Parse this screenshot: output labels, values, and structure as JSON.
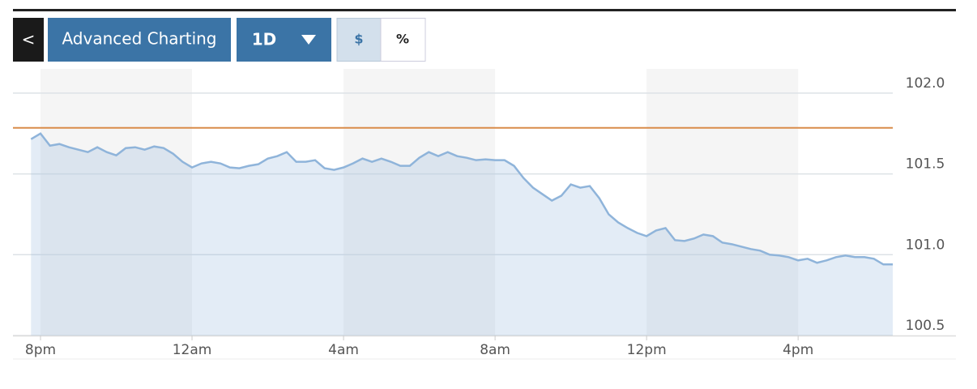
{
  "toolbar": {
    "back": "<",
    "title": "Advanced Charting",
    "range": "1D",
    "currency": "$",
    "percent": "%"
  },
  "chart_data": {
    "type": "area",
    "categories": [
      null,
      "8pm",
      null,
      null,
      null,
      null,
      null,
      null,
      null,
      null,
      null,
      null,
      null,
      null,
      null,
      null,
      null,
      "12am",
      null,
      null,
      null,
      null,
      null,
      null,
      null,
      null,
      null,
      null,
      null,
      null,
      null,
      null,
      null,
      "4am",
      null,
      null,
      null,
      null,
      null,
      null,
      null,
      null,
      null,
      null,
      null,
      null,
      null,
      null,
      null,
      "8am",
      null,
      null,
      null,
      null,
      null,
      null,
      null,
      null,
      null,
      null,
      null,
      null,
      null,
      null,
      null,
      "12pm",
      null,
      null,
      null,
      null,
      null,
      null,
      null,
      null,
      null,
      null,
      null,
      null,
      null,
      null,
      null,
      "4pm",
      null,
      null,
      null,
      null,
      null,
      null,
      null,
      null,
      null,
      null
    ],
    "series": [
      {
        "color": "#8fb4da",
        "values": [
          101.715,
          101.75,
          101.675,
          101.685,
          101.665,
          101.65,
          101.635,
          101.665,
          101.635,
          101.615,
          101.66,
          101.665,
          101.65,
          101.67,
          101.66,
          101.625,
          101.575,
          101.54,
          101.565,
          101.575,
          101.565,
          101.54,
          101.535,
          101.55,
          101.56,
          101.595,
          101.61,
          101.635,
          101.575,
          101.575,
          101.585,
          101.535,
          101.525,
          101.54,
          101.565,
          101.595,
          101.575,
          101.595,
          101.575,
          101.55,
          101.55,
          101.6,
          101.635,
          101.61,
          101.635,
          101.61,
          101.6,
          101.585,
          101.59,
          101.585,
          101.585,
          101.55,
          101.475,
          101.415,
          101.375,
          101.335,
          101.365,
          101.435,
          101.415,
          101.425,
          101.35,
          101.25,
          101.2,
          101.165,
          101.135,
          101.115,
          101.15,
          101.165,
          101.09,
          101.085,
          101.1,
          101.125,
          101.115,
          101.075,
          101.065,
          101.05,
          101.035,
          101.025,
          101.0,
          100.995,
          100.985,
          100.965,
          100.975,
          100.95,
          100.965,
          100.985,
          100.995,
          100.985,
          100.985,
          100.975,
          100.94,
          100.94
        ]
      }
    ],
    "ylim": [
      100.5,
      102.15
    ],
    "yticks": [
      100.5,
      {
        "value": 101.0,
        "label": "101.0"
      },
      101.5,
      {
        "value": 102.0,
        "label": "102.0"
      }
    ],
    "grid": true,
    "reference_line": {
      "value": 101.785,
      "color": "#d98c4a"
    }
  }
}
